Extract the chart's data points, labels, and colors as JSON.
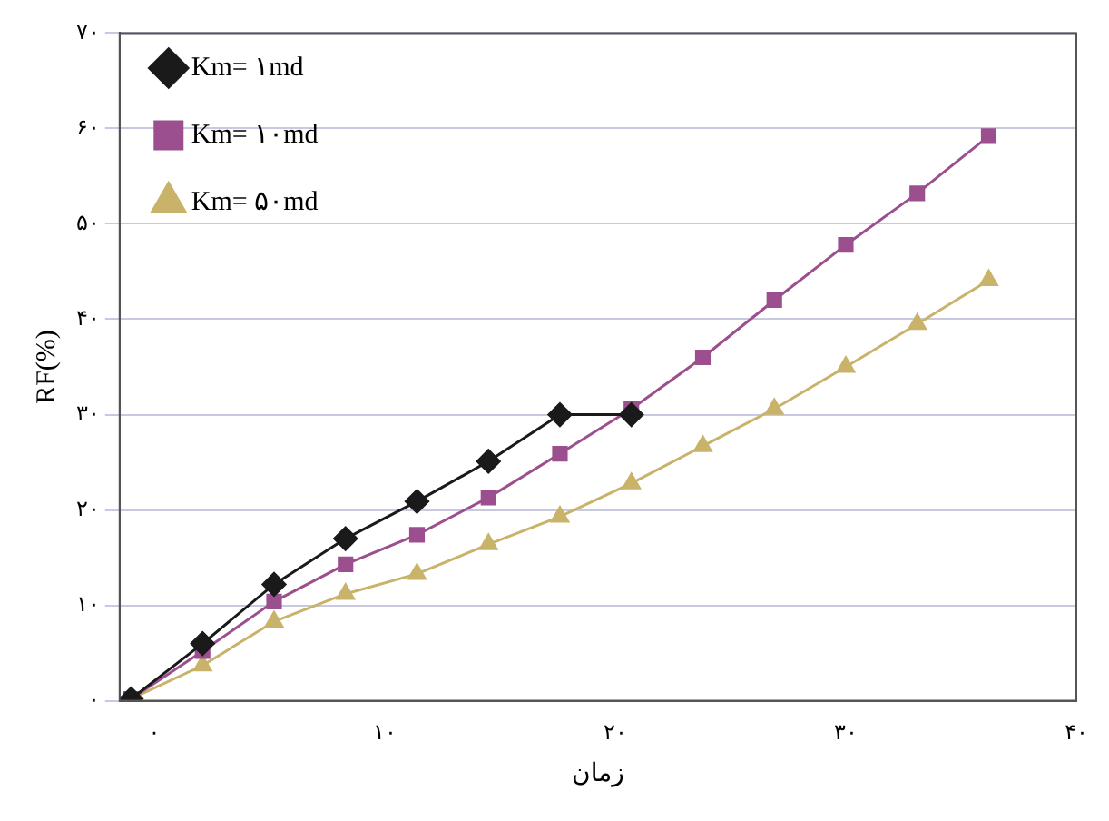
{
  "chart_data": {
    "type": "line",
    "xlabel": "زمان",
    "ylabel": "RF(%)",
    "xlim": [
      -1.5,
      40
    ],
    "ylim": [
      0,
      70
    ],
    "xticks": [
      {
        "value": 0,
        "label": "۰"
      },
      {
        "value": 10,
        "label": "۱۰"
      },
      {
        "value": 20,
        "label": "۲۰"
      },
      {
        "value": 30,
        "label": "۳۰"
      },
      {
        "value": 40,
        "label": "۴۰"
      }
    ],
    "yticks": [
      {
        "value": 0,
        "label": "۰"
      },
      {
        "value": 10,
        "label": "۱۰"
      },
      {
        "value": 20,
        "label": "۲۰"
      },
      {
        "value": 30,
        "label": "۳۰"
      },
      {
        "value": 40,
        "label": "۴۰"
      },
      {
        "value": 50,
        "label": "۵۰"
      },
      {
        "value": 60,
        "label": "۶۰"
      },
      {
        "value": 70,
        "label": "۷۰"
      }
    ],
    "grid": "y",
    "legend": "top left",
    "line_style": "solid",
    "series": [
      {
        "name": "Km= ۱md",
        "color": "#1a1a1a",
        "marker": "diamond",
        "x": [
          -1,
          2.1,
          5.2,
          8.3,
          11.4,
          14.5,
          17.6,
          20.7
        ],
        "values": [
          0.2,
          6,
          12.2,
          17,
          20.9,
          25.1,
          30,
          30
        ]
      },
      {
        "name": "Km= ۱۰md",
        "color": "#9c4f8e",
        "marker": "square",
        "x": [
          -1,
          2.1,
          5.2,
          8.3,
          11.4,
          14.5,
          17.6,
          20.7,
          23.8,
          26.9,
          30,
          33.1,
          36.2
        ],
        "values": [
          0.2,
          5.2,
          10.4,
          14.3,
          17.4,
          21.3,
          25.9,
          30.6,
          36,
          42,
          47.8,
          53.2,
          59.2
        ]
      },
      {
        "name": "Km= ۵۰md",
        "color": "#c9b36a",
        "marker": "triangle",
        "x": [
          -1,
          2.1,
          5.2,
          8.3,
          11.4,
          14.5,
          17.6,
          20.7,
          23.8,
          26.9,
          30,
          33.1,
          36.2
        ],
        "values": [
          0.2,
          3.7,
          8.3,
          11.2,
          13.3,
          16.4,
          19.3,
          22.8,
          26.7,
          30.6,
          35,
          39.5,
          44.1
        ]
      }
    ]
  }
}
